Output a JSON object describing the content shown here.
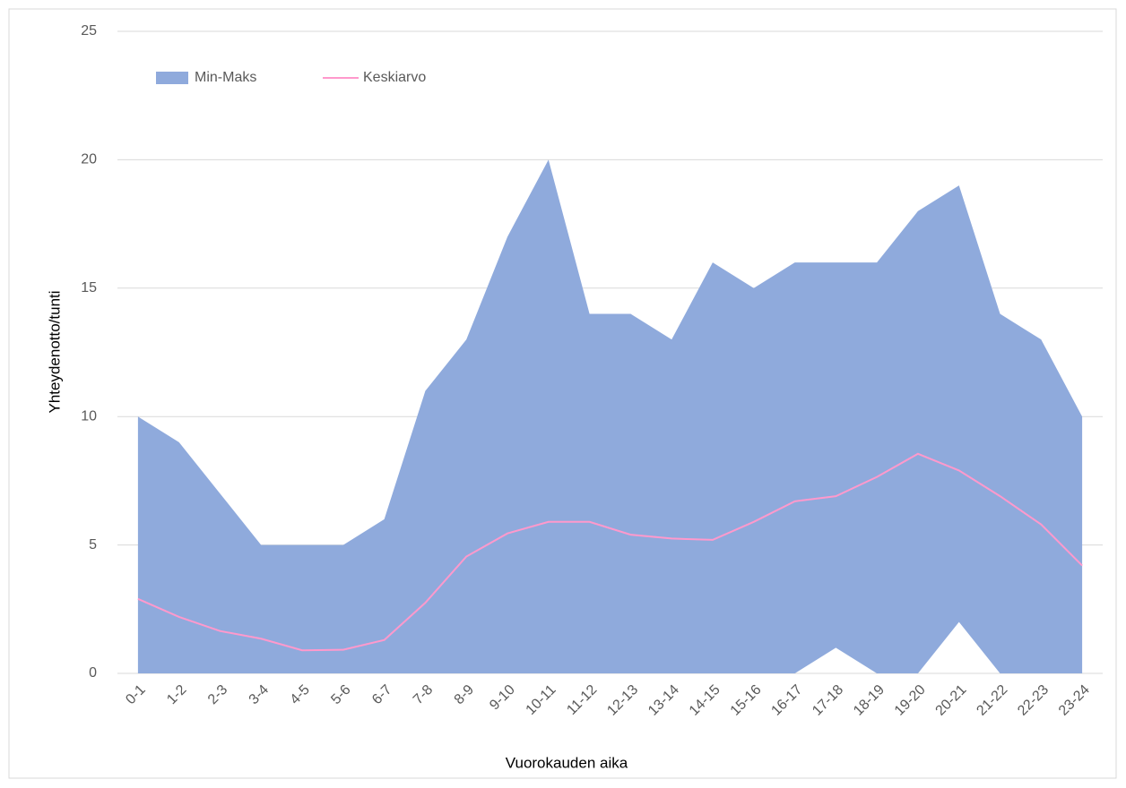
{
  "chart_data": {
    "type": "area",
    "xlabel": "Vuorokauden aika",
    "ylabel": "Yhteydenotto/tunti",
    "categories": [
      "0-1",
      "1-2",
      "2-3",
      "3-4",
      "4-5",
      "5-6",
      "6-7",
      "7-8",
      "8-9",
      "9-10",
      "10-11",
      "11-12",
      "12-13",
      "13-14",
      "14-15",
      "15-16",
      "16-17",
      "17-18",
      "18-19",
      "19-20",
      "20-21",
      "21-22",
      "22-23",
      "23-24"
    ],
    "series": [
      {
        "name": "Min-Maks",
        "color": "#8faadc",
        "low": [
          0,
          0,
          0,
          0,
          0,
          0,
          0,
          0,
          0,
          0,
          0,
          0,
          0,
          0,
          0,
          0,
          0,
          1,
          0,
          0,
          2,
          0,
          0,
          0
        ],
        "high": [
          10,
          9,
          7,
          5,
          5,
          5,
          6,
          11,
          13,
          17,
          20,
          14,
          14,
          13,
          16,
          15,
          16,
          16,
          16,
          18,
          19,
          14,
          13,
          10
        ]
      },
      {
        "name": "Keskiarvo",
        "color": "#ff99cc",
        "values": [
          2.9,
          2.2,
          1.65,
          1.35,
          0.9,
          0.92,
          1.3,
          2.75,
          4.55,
          5.45,
          5.9,
          5.9,
          5.4,
          5.25,
          5.2,
          5.9,
          6.7,
          6.9,
          7.65,
          8.55,
          7.9,
          6.9,
          5.8,
          4.2
        ]
      }
    ],
    "ylim": [
      0,
      25
    ],
    "yticks": [
      0,
      5,
      10,
      15,
      20,
      25
    ],
    "grid": true,
    "legend": "top-left"
  }
}
